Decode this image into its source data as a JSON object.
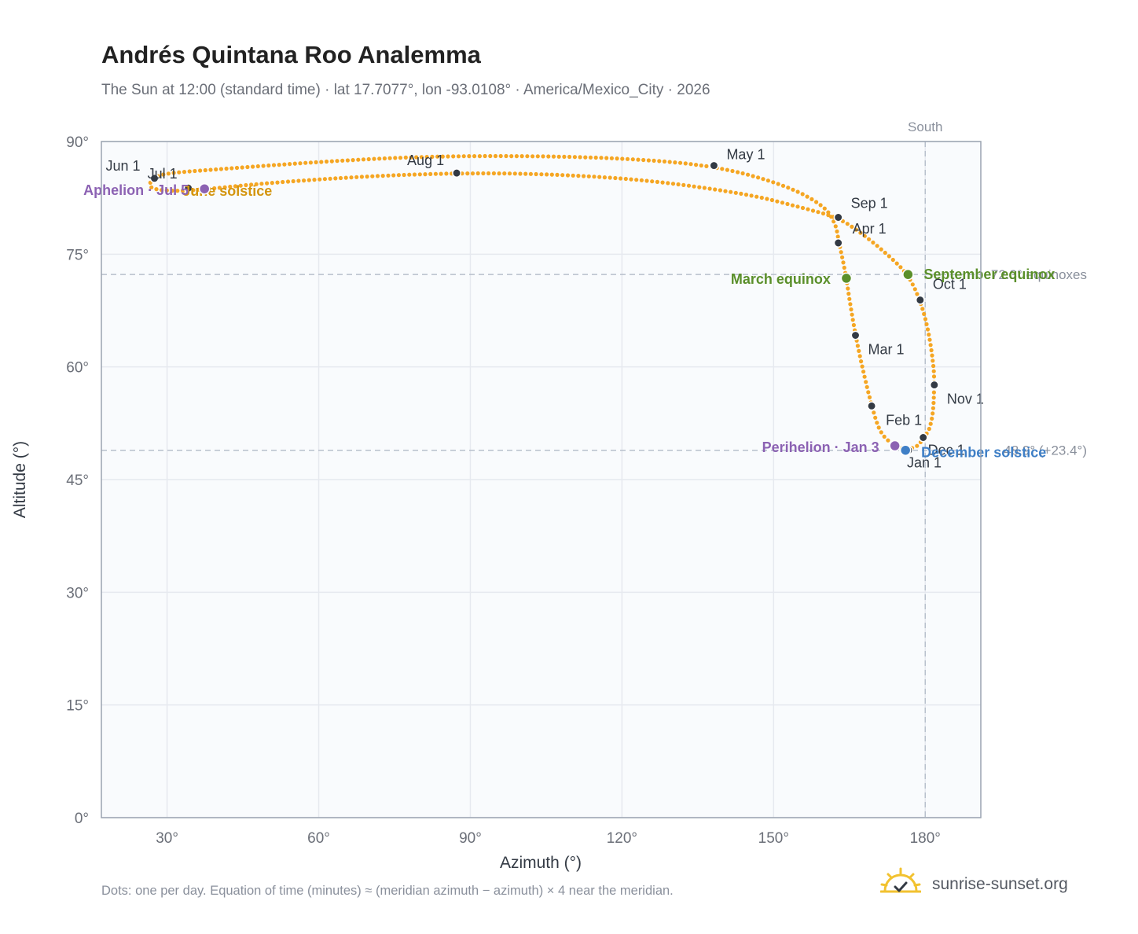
{
  "header": {
    "title": "Andrés Quintana Roo Analemma",
    "subtitle": "The Sun at 12:00 (standard time) · lat 17.7077°, lon -93.0108° · America/Mexico_City · 2026"
  },
  "footer": {
    "note": "Dots: one per day. Equation of time (minutes) ≈ (meridian azimuth − azimuth) × 4 near the meridian.",
    "brand": "sunrise-sunset.org"
  },
  "colors": {
    "path": "#f5a623",
    "month_marker": "#333a44",
    "equinox": "#5a8f2a",
    "june_solstice": "#d4950f",
    "december_solstice": "#3f7fc6",
    "apsis": "#8c62b3",
    "reference_line": "#b8c0cc",
    "plot_background": "#f9fbfd",
    "grid": "#e6e9ef",
    "axis": "#9aa3b0"
  },
  "chart_data": {
    "type": "scatter",
    "title": "Andrés Quintana Roo Analemma",
    "xlabel": "Azimuth (°)",
    "ylabel": "Altitude (°)",
    "xlim": [
      17,
      191
    ],
    "ylim": [
      0,
      90
    ],
    "xticks": [
      30,
      60,
      90,
      120,
      150,
      180
    ],
    "xtick_labels": [
      "30°",
      "60°",
      "90°",
      "120°",
      "150°",
      "180°"
    ],
    "yticks": [
      0,
      15,
      30,
      45,
      60,
      75,
      90
    ],
    "ytick_labels": [
      "0°",
      "15°",
      "30°",
      "45°",
      "60°",
      "75°",
      "90°"
    ],
    "grid": true,
    "reference_lines": [
      {
        "axis": "x",
        "value": 180,
        "label": "South"
      },
      {
        "axis": "y",
        "value": 72.3,
        "label": "72.3° equinoxes"
      },
      {
        "axis": "y",
        "value": 48.9,
        "label": "48.9° (+23.4°)"
      }
    ],
    "path_points": [
      [
        179.6,
        50.6
      ],
      [
        178.6,
        49.4
      ],
      [
        176.1,
        49.0
      ],
      [
        173.9,
        49.5
      ],
      [
        171.1,
        51.1
      ],
      [
        169.4,
        54.8
      ],
      [
        167.7,
        59.5
      ],
      [
        166.2,
        64.2
      ],
      [
        165.0,
        69.0
      ],
      [
        164.4,
        71.8
      ],
      [
        163.8,
        73.9
      ],
      [
        162.8,
        77.0
      ],
      [
        162.3,
        79.0
      ],
      [
        160.0,
        81.5
      ],
      [
        152.0,
        84.3
      ],
      [
        138.2,
        86.8
      ],
      [
        120.0,
        87.8
      ],
      [
        100.0,
        88.1
      ],
      [
        80.0,
        88.0
      ],
      [
        60.0,
        87.3
      ],
      [
        40.0,
        86.3
      ],
      [
        30.0,
        85.8
      ],
      [
        27.4,
        85.2
      ],
      [
        26.3,
        84.2
      ],
      [
        27.5,
        83.6
      ],
      [
        32.0,
        83.4
      ],
      [
        37.0,
        83.6
      ],
      [
        50.0,
        84.5
      ],
      [
        70.0,
        85.4
      ],
      [
        87.3,
        85.8
      ],
      [
        105.0,
        85.7
      ],
      [
        125.0,
        84.9
      ],
      [
        145.0,
        83.0
      ],
      [
        155.0,
        81.3
      ],
      [
        162.8,
        79.9
      ],
      [
        168.0,
        77.5
      ],
      [
        173.0,
        74.7
      ],
      [
        176.6,
        72.3
      ],
      [
        179.0,
        68.9
      ],
      [
        180.6,
        65.0
      ],
      [
        181.7,
        60.0
      ],
      [
        181.8,
        57.6
      ],
      [
        181.6,
        54.0
      ],
      [
        180.8,
        51.5
      ],
      [
        179.6,
        50.6
      ]
    ],
    "month_markers": [
      {
        "label": "Jan 1",
        "az": 176.7,
        "alt": 48.9
      },
      {
        "label": "Feb 1",
        "az": 169.4,
        "alt": 54.8
      },
      {
        "label": "Mar 1",
        "az": 166.2,
        "alt": 64.2
      },
      {
        "label": "Apr 1",
        "az": 162.8,
        "alt": 76.5
      },
      {
        "label": "May 1",
        "az": 138.2,
        "alt": 86.8
      },
      {
        "label": "Jun 1",
        "az": 27.5,
        "alt": 85.1
      },
      {
        "label": "Jul 1",
        "az": 34.2,
        "alt": 83.8
      },
      {
        "label": "Aug 1",
        "az": 87.3,
        "alt": 85.8
      },
      {
        "label": "Sep 1",
        "az": 162.8,
        "alt": 79.9
      },
      {
        "label": "Oct 1",
        "az": 179.0,
        "alt": 68.9
      },
      {
        "label": "Nov 1",
        "az": 181.8,
        "alt": 57.6
      },
      {
        "label": "Dec 1",
        "az": 179.6,
        "alt": 50.6
      }
    ],
    "events": [
      {
        "label": "March equinox",
        "az": 164.4,
        "alt": 71.8,
        "kind": "equinox"
      },
      {
        "label": "September equinox",
        "az": 176.6,
        "alt": 72.3,
        "kind": "equinox"
      },
      {
        "label": "June solstice",
        "az": 37.4,
        "alt": 83.7,
        "kind": "june_solstice"
      },
      {
        "label": "December solstice",
        "az": 176.1,
        "alt": 48.9,
        "kind": "december_solstice"
      },
      {
        "label": "Perihelion · Jan 3",
        "az": 174.0,
        "alt": 49.5,
        "kind": "apsis"
      },
      {
        "label": "Aphelion · Jul 5",
        "az": 37.4,
        "alt": 83.7,
        "kind": "apsis"
      }
    ]
  }
}
